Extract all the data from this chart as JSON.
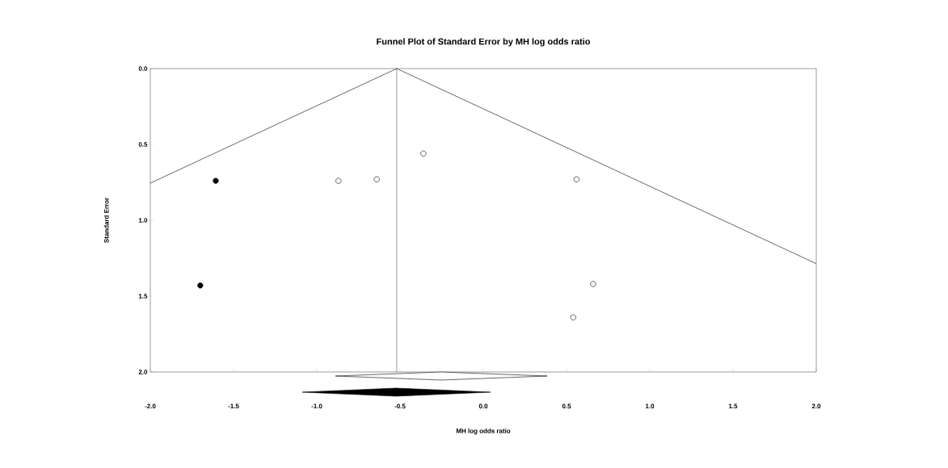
{
  "chart_data": {
    "type": "scatter",
    "title": "Funnel Plot of Standard Error by MH log odds ratio",
    "xlabel": "MH log odds ratio",
    "ylabel": "Standard Error",
    "xlim": [
      -2.0,
      2.0
    ],
    "ylim": [
      2.0,
      0.0
    ],
    "xticks": [
      {
        "value": -2.0,
        "label": "-2.0"
      },
      {
        "value": -1.5,
        "label": "-1.5"
      },
      {
        "value": -1.0,
        "label": "-1.0"
      },
      {
        "value": -0.5,
        "label": "-0.5"
      },
      {
        "value": 0.0,
        "label": "0.0"
      },
      {
        "value": 0.5,
        "label": "0.5"
      },
      {
        "value": 1.0,
        "label": "1.0"
      },
      {
        "value": 1.5,
        "label": "1.5"
      },
      {
        "value": 2.0,
        "label": "2.0"
      }
    ],
    "yticks": [
      {
        "value": 0.0,
        "label": "0.0"
      },
      {
        "value": 0.5,
        "label": "0.5"
      },
      {
        "value": 1.0,
        "label": "1.0"
      },
      {
        "value": 1.5,
        "label": "1.5"
      },
      {
        "value": 2.0,
        "label": "2.0"
      }
    ],
    "grid": false,
    "series": [
      {
        "type": "line",
        "marker": "none",
        "color": "#000000",
        "x": [
          -2.0,
          -0.52,
          2.0
        ],
        "values": [
          0.755,
          0.0,
          1.286
        ]
      },
      {
        "marker": "circle",
        "color": "#000000",
        "x": [
          -1.607,
          -1.7
        ],
        "values": [
          0.74,
          1.43
        ]
      },
      {
        "marker": "circle",
        "color": "#ffffff",
        "x": [
          -0.87,
          -0.64,
          -0.36,
          0.56,
          0.66,
          0.54
        ],
        "values": [
          0.74,
          0.73,
          0.56,
          0.73,
          1.42,
          1.64
        ]
      }
    ],
    "ref_lines": [
      {
        "axis": "x",
        "value": -0.52,
        "color": "#000000"
      }
    ]
  }
}
